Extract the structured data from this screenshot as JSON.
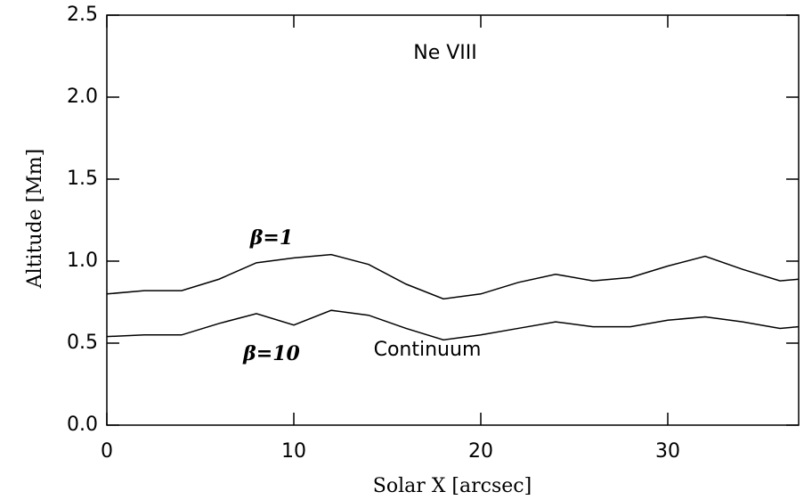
{
  "chart_data": {
    "type": "line",
    "annotations": [
      "Ne VIII",
      "Continuum"
    ],
    "x_label": "Solar X [arcsec]",
    "y_label": "Altitude [Mm]",
    "x": [
      0,
      2,
      4,
      6,
      8,
      10,
      12,
      14,
      16,
      18,
      20,
      22,
      24,
      26,
      28,
      30,
      32,
      34,
      36,
      37
    ],
    "series": [
      {
        "name": "β=1",
        "color": "#000000",
        "values": [
          0.8,
          0.82,
          0.82,
          0.89,
          0.99,
          1.02,
          1.04,
          0.98,
          0.86,
          0.77,
          0.8,
          0.87,
          0.92,
          0.88,
          0.9,
          0.97,
          1.03,
          0.95,
          0.88,
          0.89
        ]
      },
      {
        "name": "β=10",
        "color": "#000000",
        "values": [
          0.54,
          0.55,
          0.55,
          0.62,
          0.68,
          0.61,
          0.7,
          0.67,
          0.59,
          0.52,
          0.55,
          0.59,
          0.63,
          0.6,
          0.6,
          0.64,
          0.66,
          0.63,
          0.59,
          0.6
        ]
      }
    ],
    "xlim": [
      0,
      37
    ],
    "ylim": [
      0,
      2.5
    ],
    "xticks": [
      0,
      10,
      20,
      30
    ],
    "yticks": [
      {
        "value": 0,
        "label": "0.0"
      },
      {
        "value": 0.5,
        "label": "0.5"
      },
      {
        "value": 1,
        "label": "1.0"
      },
      {
        "value": 1.5,
        "label": "1.5"
      },
      {
        "value": 2,
        "label": "2.0"
      },
      {
        "value": 2.5,
        "label": "2.5"
      }
    ]
  }
}
